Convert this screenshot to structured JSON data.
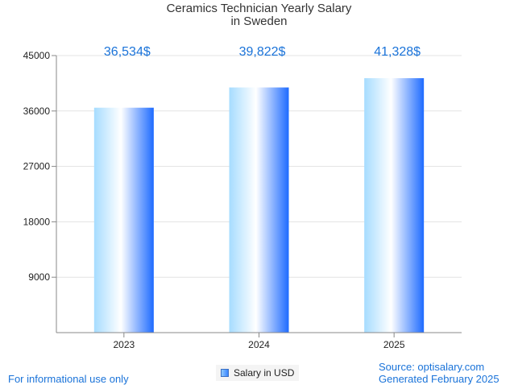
{
  "chart_data": {
    "type": "bar",
    "title_line1": "Ceramics Technician Yearly Salary",
    "title_line2": "in Sweden",
    "categories": [
      "2023",
      "2024",
      "2025"
    ],
    "series": [
      {
        "name": "Salary in USD",
        "values": [
          36534,
          39822,
          41328
        ]
      }
    ],
    "data_labels": [
      "36,534$",
      "39,822$",
      "41,328$"
    ],
    "ylim": [
      0,
      45000
    ],
    "yticks": [
      9000,
      18000,
      27000,
      36000,
      45000
    ],
    "grid": true,
    "legend_position": "bottom"
  },
  "colors": {
    "bar_light": "#a6dcff",
    "bar_white": "#ffffff",
    "bar_dark": "#1e6bff",
    "label": "#1a73d9",
    "grid": "#e3e3e3",
    "axis": "#888888"
  },
  "footer": {
    "disclaimer": "For informational use only",
    "source": "Source: optisalary.com",
    "generated": "Generated February 2025"
  }
}
